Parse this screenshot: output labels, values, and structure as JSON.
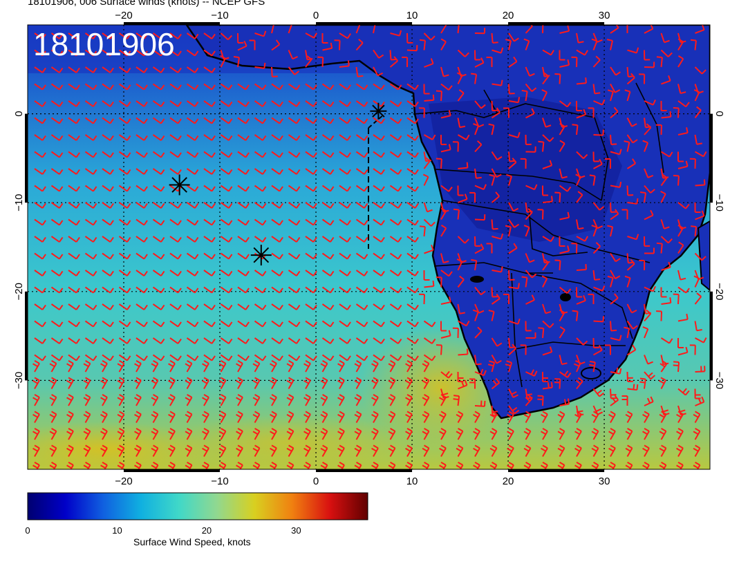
{
  "title": "18101906, 006 Surface winds (knots) -- NCEP GFS",
  "stamp": "18101906",
  "map": {
    "lon_range": [
      -30,
      41
    ],
    "lat_range": [
      -40,
      10
    ],
    "lon_ticks": [
      "−20",
      "−10",
      "0",
      "10",
      "20",
      "30"
    ],
    "lat_ticks": [
      "0",
      "−10",
      "−20",
      "−30"
    ],
    "markers": [
      {
        "name": "storm-marker-1",
        "lon": -14.2,
        "lat": -8.0
      },
      {
        "name": "storm-marker-2",
        "lon": -5.7,
        "lat": -15.9
      },
      {
        "name": "storm-marker-3",
        "lon": 6.5,
        "lat": 0.3
      }
    ],
    "barb_color": "#ff1a1a"
  },
  "colorbar": {
    "label": "Surface Wind Speed, knots",
    "ticks": [
      {
        "value": 0,
        "label": "0"
      },
      {
        "value": 10,
        "label": "10"
      },
      {
        "value": 20,
        "label": "20"
      },
      {
        "value": 30,
        "label": "30"
      }
    ],
    "range": [
      0,
      38
    ],
    "stops": [
      "#000070",
      "#0000c8",
      "#1060e0",
      "#10b0e0",
      "#40d8c8",
      "#90d890",
      "#d8d020",
      "#f08010",
      "#d81010",
      "#600000"
    ]
  }
}
